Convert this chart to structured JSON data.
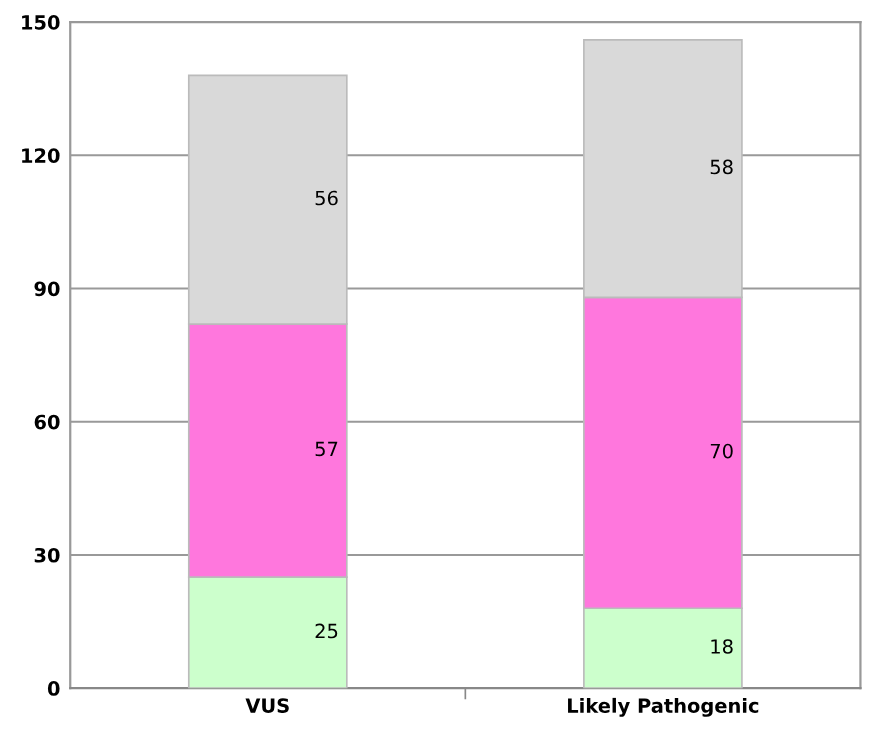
{
  "chart_data": {
    "type": "bar",
    "stacked": true,
    "categories": [
      "VUS",
      "Likely Pathogenic"
    ],
    "series": [
      {
        "color": "#ccffcc",
        "values": [
          25,
          18
        ]
      },
      {
        "color": "#ff77dd",
        "values": [
          57,
          70
        ]
      },
      {
        "color": "#d9d9d9",
        "values": [
          56,
          58
        ]
      }
    ],
    "ylim": [
      0,
      150
    ],
    "yticks": [
      0,
      30,
      60,
      90,
      120,
      150
    ],
    "grid": "y",
    "data_labels": true,
    "legend": false
  }
}
